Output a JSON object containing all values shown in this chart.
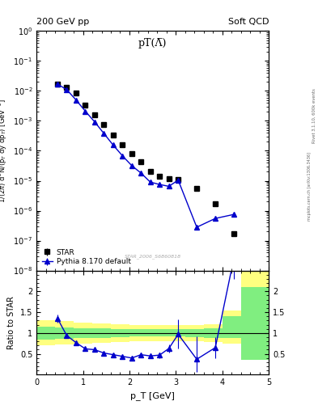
{
  "title_left": "200 GeV pp",
  "title_right": "Soft QCD",
  "plot_title": "pT(Λ̅)",
  "watermark": "STAR_2006_S6860818",
  "right_label_top": "Rivet 3.1.10, 600k events",
  "right_label_bot": "mcplots.cern.ch [arXiv:1306.3436]",
  "ylabel_main": "1/(2π) d²N/(p_T dy dp_T) [GeV⁻²]",
  "ylabel_ratio": "Ratio to STAR",
  "xlabel": "p_T [GeV]",
  "star_x": [
    0.45,
    0.65,
    0.85,
    1.05,
    1.25,
    1.45,
    1.65,
    1.85,
    2.05,
    2.25,
    2.45,
    2.65,
    2.85,
    3.05,
    3.45,
    3.85,
    4.25
  ],
  "star_y": [
    0.017,
    0.013,
    0.0085,
    0.0033,
    0.0016,
    0.00074,
    0.00033,
    0.000155,
    7.8e-05,
    4.4e-05,
    2.1e-05,
    1.45e-05,
    1.15e-05,
    1.1e-05,
    5.5e-06,
    1.7e-06,
    1.7e-07
  ],
  "star_yerr_lo": [
    0.001,
    0.0007,
    0.0004,
    0.00015,
    7e-05,
    3.5e-05,
    1.6e-05,
    8e-06,
    4e-06,
    2.5e-06,
    1.2e-06,
    9e-07,
    7e-07,
    7e-07,
    4e-07,
    1.5e-07,
    2e-08
  ],
  "star_yerr_hi": [
    0.001,
    0.0007,
    0.0004,
    0.00015,
    7e-05,
    3.5e-05,
    1.6e-05,
    8e-06,
    4e-06,
    2.5e-06,
    1.2e-06,
    9e-07,
    7e-07,
    7e-07,
    4e-07,
    1.5e-07,
    2e-08
  ],
  "pythia_x": [
    0.45,
    0.65,
    0.85,
    1.05,
    1.25,
    1.45,
    1.65,
    1.85,
    2.05,
    2.25,
    2.45,
    2.65,
    2.85,
    3.05,
    3.45,
    3.85,
    4.25
  ],
  "pythia_y": [
    0.017,
    0.011,
    0.005,
    0.0021,
    0.00093,
    0.00038,
    0.000155,
    6.8e-05,
    3.2e-05,
    1.8e-05,
    9e-06,
    7.5e-06,
    6.5e-06,
    1.05e-05,
    2.8e-07,
    5.5e-07,
    7.5e-07
  ],
  "pythia_yerr_lo": [
    0.0005,
    0.0004,
    0.0002,
    7e-05,
    3e-05,
    1.2e-05,
    5e-06,
    2.5e-06,
    1.3e-06,
    7e-07,
    4e-07,
    3.5e-07,
    3e-07,
    5e-07,
    5e-08,
    7e-08,
    1e-07
  ],
  "pythia_yerr_hi": [
    0.0005,
    0.0004,
    0.0002,
    7e-05,
    3e-05,
    1.2e-05,
    5e-06,
    2.5e-06,
    1.3e-06,
    7e-07,
    4e-07,
    3.5e-07,
    3e-07,
    5e-07,
    5e-08,
    7e-08,
    1e-07
  ],
  "ratio_x": [
    0.45,
    0.65,
    0.85,
    1.05,
    1.25,
    1.45,
    1.65,
    1.85,
    2.05,
    2.25,
    2.45,
    2.65,
    2.85,
    3.05,
    3.45,
    3.85,
    4.25
  ],
  "ratio_y": [
    1.35,
    0.94,
    0.77,
    0.62,
    0.6,
    0.52,
    0.48,
    0.44,
    0.4,
    0.48,
    0.45,
    0.47,
    0.63,
    0.97,
    0.37,
    0.65,
    2.8
  ],
  "ratio_yerr_lo": [
    0.1,
    0.06,
    0.05,
    0.04,
    0.04,
    0.04,
    0.04,
    0.04,
    0.05,
    0.06,
    0.06,
    0.07,
    0.1,
    0.35,
    0.3,
    0.25,
    0.5
  ],
  "ratio_yerr_hi": [
    0.1,
    0.06,
    0.05,
    0.04,
    0.04,
    0.04,
    0.04,
    0.04,
    0.05,
    0.06,
    0.06,
    0.07,
    0.1,
    0.35,
    0.55,
    0.25,
    0.5
  ],
  "band_yellow_edges": [
    0.0,
    0.4,
    0.8,
    1.2,
    1.6,
    2.0,
    2.4,
    2.8,
    3.2,
    3.6,
    4.0,
    4.4,
    5.0
  ],
  "band_yellow_lo": [
    0.7,
    0.72,
    0.75,
    0.77,
    0.79,
    0.8,
    0.81,
    0.81,
    0.8,
    0.78,
    0.75,
    0.65
  ],
  "band_yellow_hi": [
    1.3,
    1.28,
    1.25,
    1.23,
    1.21,
    1.2,
    1.19,
    1.19,
    1.2,
    1.22,
    1.55,
    2.55
  ],
  "band_green_edges": [
    0.0,
    0.4,
    0.8,
    1.2,
    1.6,
    2.0,
    2.4,
    2.8,
    3.2,
    3.6,
    4.0,
    4.4,
    5.0
  ],
  "band_green_lo": [
    0.85,
    0.86,
    0.88,
    0.89,
    0.9,
    0.91,
    0.91,
    0.91,
    0.9,
    0.89,
    0.88,
    0.35
  ],
  "band_green_hi": [
    1.15,
    1.14,
    1.12,
    1.11,
    1.1,
    1.09,
    1.09,
    1.09,
    1.1,
    1.11,
    1.4,
    2.1
  ],
  "ylim_main_lo": 1e-08,
  "ylim_main_hi": 1.0,
  "ylim_ratio_lo": 0.0,
  "ylim_ratio_hi": 2.5,
  "xlim_lo": 0.0,
  "xlim_hi": 5.0,
  "star_color": "#000000",
  "pythia_color": "#0000cc",
  "yellow_color": "#ffff80",
  "green_color": "#80ee80"
}
